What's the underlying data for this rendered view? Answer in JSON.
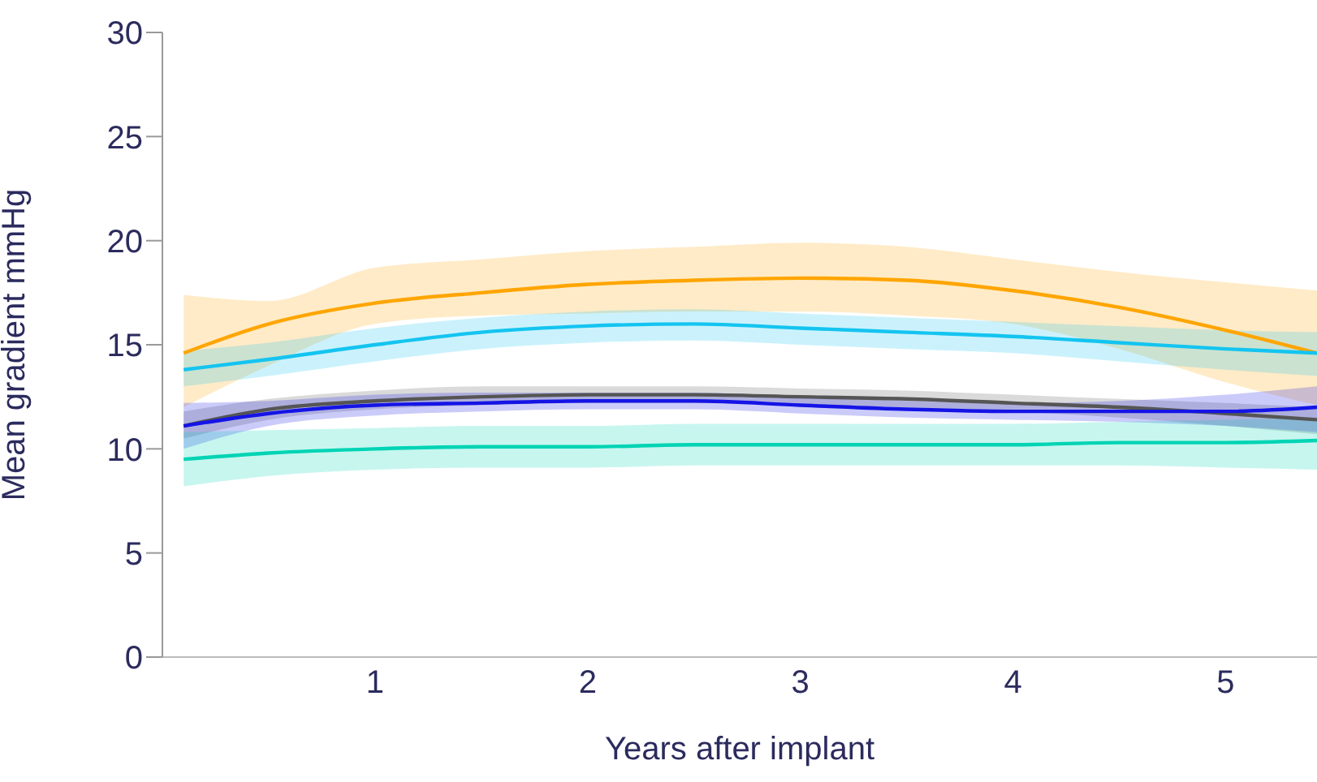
{
  "chart_data": {
    "type": "line",
    "xlabel": "Years after implant",
    "ylabel": "Mean gradient mmHg",
    "x": [
      0.1,
      0.5,
      1,
      1.5,
      2,
      2.5,
      3,
      3.5,
      4,
      4.5,
      5,
      5.43
    ],
    "xlim": [
      0,
      5.43
    ],
    "xticks": [
      1,
      2,
      3,
      4,
      5
    ],
    "ylim": [
      0,
      30
    ],
    "yticks": [
      0,
      5,
      10,
      15,
      20,
      25,
      30
    ],
    "grid": false,
    "legend": false,
    "marker": "none",
    "line_style": "solid",
    "series": [
      {
        "color": "#ffa500",
        "values": [
          14.6,
          16.0,
          17.0,
          17.5,
          17.9,
          18.1,
          18.2,
          18.1,
          17.6,
          16.8,
          15.7,
          14.6
        ],
        "lower": [
          12.0,
          14.0,
          16.0,
          16.4,
          16.5,
          16.6,
          16.6,
          16.4,
          16.0,
          14.8,
          13.2,
          12.1
        ],
        "upper": [
          17.4,
          17.1,
          18.7,
          19.1,
          19.5,
          19.7,
          19.9,
          19.7,
          19.1,
          18.5,
          18.0,
          17.6
        ]
      },
      {
        "color": "#14c4f0",
        "values": [
          13.8,
          14.3,
          15.0,
          15.6,
          15.9,
          16.0,
          15.8,
          15.6,
          15.4,
          15.1,
          14.8,
          14.6
        ],
        "lower": [
          13.0,
          13.5,
          14.2,
          14.8,
          15.1,
          15.2,
          15.0,
          14.8,
          14.6,
          14.2,
          13.8,
          13.5
        ],
        "upper": [
          14.7,
          15.1,
          15.8,
          16.3,
          16.6,
          16.7,
          16.5,
          16.3,
          16.1,
          15.9,
          15.7,
          15.6
        ]
      },
      {
        "color": "#555555",
        "values": [
          11.1,
          11.9,
          12.3,
          12.5,
          12.6,
          12.6,
          12.5,
          12.4,
          12.2,
          12.0,
          11.7,
          11.4
        ],
        "lower": [
          10.5,
          11.4,
          11.9,
          12.1,
          12.2,
          12.2,
          12.1,
          12.0,
          11.8,
          11.5,
          11.1,
          10.7
        ],
        "upper": [
          11.8,
          12.4,
          12.8,
          13.0,
          13.0,
          13.0,
          12.9,
          12.8,
          12.6,
          12.4,
          12.2,
          12.0
        ]
      },
      {
        "color": "#1414e6",
        "values": [
          11.1,
          11.7,
          12.1,
          12.2,
          12.3,
          12.3,
          12.1,
          11.9,
          11.8,
          11.8,
          11.8,
          12.0
        ],
        "lower": [
          10.0,
          11.1,
          11.6,
          11.8,
          11.9,
          11.9,
          11.7,
          11.5,
          11.4,
          11.3,
          11.1,
          10.8
        ],
        "upper": [
          12.2,
          12.3,
          12.6,
          12.7,
          12.7,
          12.7,
          12.5,
          12.3,
          12.2,
          12.3,
          12.6,
          13.0
        ]
      },
      {
        "color": "#00d4b4",
        "values": [
          9.5,
          9.8,
          10.0,
          10.1,
          10.1,
          10.2,
          10.2,
          10.2,
          10.2,
          10.3,
          10.3,
          10.4
        ],
        "lower": [
          8.2,
          8.7,
          9.0,
          9.1,
          9.1,
          9.2,
          9.2,
          9.2,
          9.2,
          9.2,
          9.1,
          9.0
        ],
        "upper": [
          10.8,
          10.9,
          11.0,
          11.1,
          11.1,
          11.2,
          11.2,
          11.2,
          11.2,
          11.3,
          11.4,
          11.5
        ]
      }
    ]
  }
}
